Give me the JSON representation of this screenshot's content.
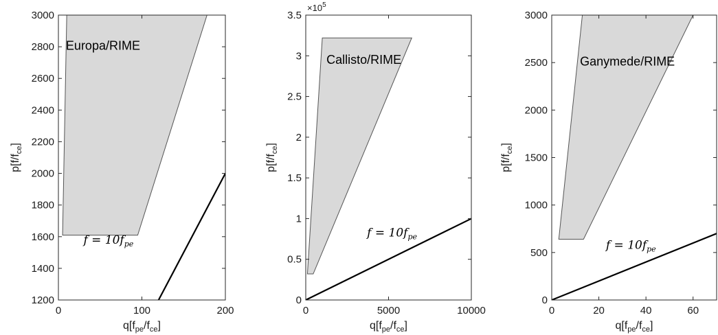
{
  "chart_data": [
    {
      "type": "area",
      "title": "Europa/RIME",
      "xlabel_main": "q[f",
      "xlabel_sub1": "pe",
      "xlabel_mid": "/f",
      "xlabel_sub2": "ce",
      "xlabel_end": "]",
      "ylabel_main": "p[f/f",
      "ylabel_sub": "ce",
      "ylabel_end": "]",
      "xlim": [
        0,
        200
      ],
      "ylim": [
        1200,
        3000
      ],
      "xticks": [
        0,
        100,
        200
      ],
      "yticks": [
        1200,
        1400,
        1600,
        1800,
        2000,
        2200,
        2400,
        2600,
        2800,
        3000
      ],
      "tick_multiplier": "",
      "region": {
        "x": [
          5,
          10,
          178,
          95,
          5
        ],
        "y": [
          1610,
          3000,
          3000,
          1610,
          1610
        ]
      },
      "line": {
        "x": [
          120,
          200
        ],
        "y": [
          1200,
          2000
        ]
      },
      "equation": {
        "text": "f = 10f",
        "sub": "pe",
        "at": [
          30,
          1555
        ]
      },
      "title_at": [
        9,
        2780
      ]
    },
    {
      "type": "area",
      "title": "Callisto/RIME",
      "xlabel_main": "q[f",
      "xlabel_sub1": "pe",
      "xlabel_mid": "/f",
      "xlabel_sub2": "ce",
      "xlabel_end": "]",
      "ylabel_main": "p[f/f",
      "ylabel_sub": "ce",
      "ylabel_end": "]",
      "xlim": [
        0,
        10000
      ],
      "ylim": [
        0,
        350000
      ],
      "xticks": [
        0,
        5000,
        10000
      ],
      "yticks": [
        0,
        50000,
        100000,
        150000,
        200000,
        250000,
        300000,
        350000
      ],
      "ytick_labels": [
        "0",
        "0.5",
        "1",
        "1.5",
        "2",
        "2.5",
        "3",
        "3.5"
      ],
      "tick_multiplier": "×10",
      "tick_multiplier_exp": "5",
      "region": {
        "x": [
          100,
          450,
          1000,
          6400,
          6400,
          100
        ],
        "y": [
          32000,
          32000,
          32000,
          322000,
          322000,
          32000
        ]
      },
      "region_poly": {
        "x": [
          100,
          1000,
          6400,
          450,
          100
        ],
        "y": [
          32000,
          322000,
          322000,
          32000,
          32000
        ]
      },
      "line": {
        "x": [
          0,
          10000
        ],
        "y": [
          0,
          100000
        ]
      },
      "equation": {
        "text": "f = 10f",
        "sub": "pe",
        "at": [
          3700,
          78000
        ]
      },
      "title_at": [
        1250,
        290000
      ]
    },
    {
      "type": "area",
      "title": "Ganymede/RIME",
      "xlabel_main": "q[f",
      "xlabel_sub1": "pe",
      "xlabel_mid": "/f",
      "xlabel_sub2": "ce",
      "xlabel_end": "]",
      "ylabel_main": "p[f/f",
      "ylabel_sub": "ce",
      "ylabel_end": "]",
      "xlim": [
        0,
        70
      ],
      "ylim": [
        0,
        3000
      ],
      "xticks": [
        0,
        20,
        40,
        60
      ],
      "yticks": [
        0,
        500,
        1000,
        1500,
        2000,
        2500,
        3000
      ],
      "tick_multiplier": "",
      "region": {
        "x": [
          3,
          13,
          60,
          13.5,
          3
        ],
        "y": [
          640,
          3000,
          3000,
          640,
          640
        ]
      },
      "line": {
        "x": [
          0,
          70
        ],
        "y": [
          0,
          700
        ]
      },
      "equation": {
        "text": "f = 10f",
        "sub": "pe",
        "at": [
          23,
          540
        ]
      },
      "title_at": [
        12,
        2470
      ]
    }
  ],
  "style": {
    "region_fill": "#d9d9d9",
    "region_stroke": "#555555",
    "line_color": "#000000"
  }
}
